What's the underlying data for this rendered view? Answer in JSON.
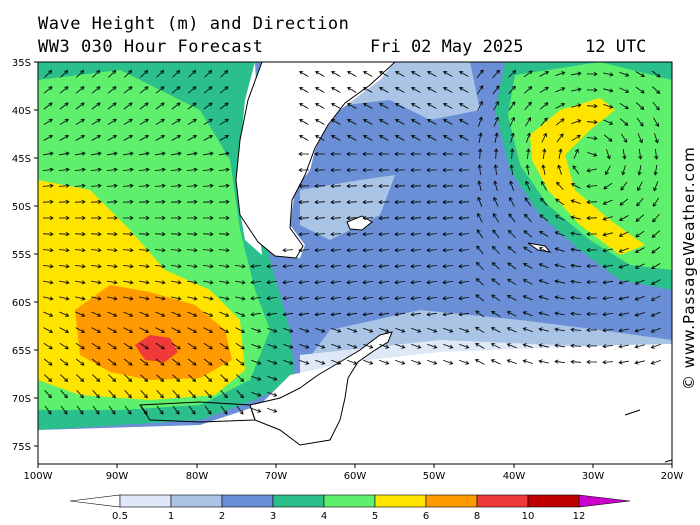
{
  "header": {
    "line1": "Wave Height (m) and Direction",
    "line2": "WW3 030 Hour Forecast",
    "date": "Fri 02 May 2025",
    "time": "12 UTC"
  },
  "credit": "© www.PassageWeather.com",
  "axes": {
    "lat_labels": [
      "35S",
      "40S",
      "45S",
      "50S",
      "55S",
      "60S",
      "65S",
      "70S",
      "75S"
    ],
    "lon_labels": [
      "100W",
      "90W",
      "80W",
      "70W",
      "60W",
      "50W",
      "40W",
      "30W",
      "20W"
    ]
  },
  "colorbar": {
    "ticks": [
      "0.5",
      "1",
      "2",
      "3",
      "4",
      "5",
      "6",
      "8",
      "10",
      "12"
    ],
    "colors": [
      "#ffffff",
      "#dfe8f6",
      "#a9c4e4",
      "#6b8fd6",
      "#2bbf8c",
      "#5ef06c",
      "#ffe400",
      "#ff9a00",
      "#f03a3a",
      "#c00000",
      "#cc00cc"
    ]
  },
  "palette": {
    "band_0_5_1": "#dfe8f6",
    "band_1_2": "#a9c4e4",
    "band_2_3": "#6b8fd6",
    "band_3_4": "#2bbf8c",
    "band_4_5": "#5ef06c",
    "band_5_6": "#ffe400",
    "band_6_8": "#ff9a00",
    "band_8_10": "#f03a3a",
    "ice_land": "#ffffff"
  }
}
